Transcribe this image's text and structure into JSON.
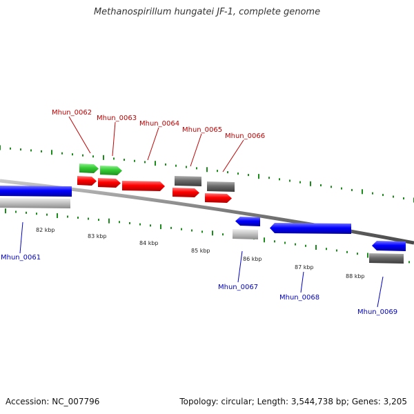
{
  "title": "Methanospirillum hungatei JF-1, complete genome",
  "footer": {
    "accession": "Accession: NC_007796",
    "summary": "Topology: circular; Length: 3,544,738 bp; Genes: 3,205"
  },
  "colors": {
    "backbone": "#808080",
    "tick": "#1a8a1a",
    "label_forward": "#c00000",
    "label_reverse": "#0000c0",
    "green": "#33cc33",
    "red": "#ff0000",
    "dark_gray": "#666666",
    "light_gray": "#bbbbbb",
    "blue": "#0000ff"
  },
  "kbp_labels": [
    "82 kbp",
    "83 kbp",
    "84 kbp",
    "85 kbp",
    "86 kbp",
    "87 kbp",
    "88 kbp"
  ],
  "gene_labels": [
    {
      "text": "Mhun_0061",
      "strand": "reverse"
    },
    {
      "text": "Mhun_0062",
      "strand": "forward"
    },
    {
      "text": "Mhun_0063",
      "strand": "forward"
    },
    {
      "text": "Mhun_0064",
      "strand": "forward"
    },
    {
      "text": "Mhun_0065",
      "strand": "forward"
    },
    {
      "text": "Mhun_0066",
      "strand": "forward"
    },
    {
      "text": "Mhun_0067",
      "strand": "reverse"
    },
    {
      "text": "Mhun_0068",
      "strand": "reverse"
    },
    {
      "text": "Mhun_0069",
      "strand": "reverse"
    }
  ]
}
